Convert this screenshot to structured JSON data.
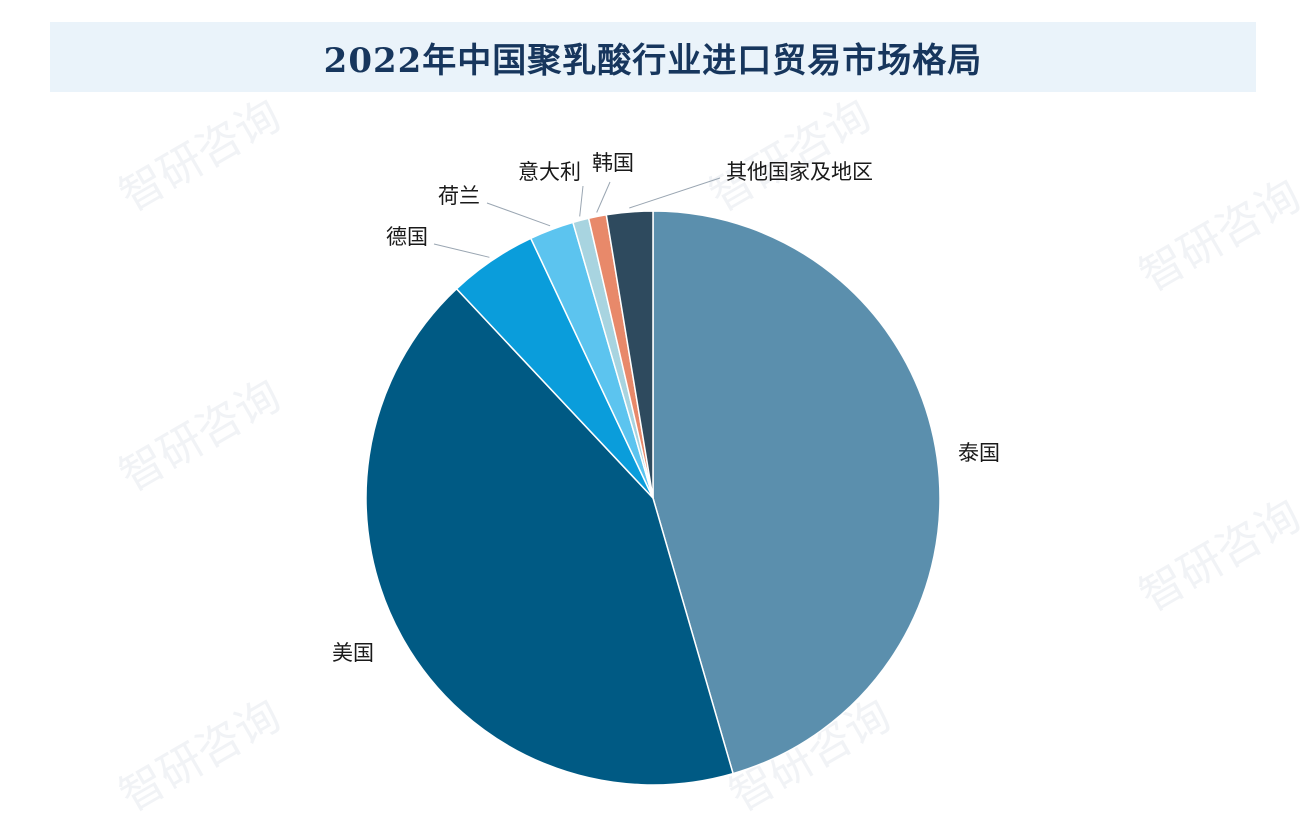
{
  "title": "2022年中国聚乳酸行业进口贸易市场格局",
  "watermark_text": "智研咨询",
  "chart_data": {
    "type": "pie",
    "title": "2022年中国聚乳酸行业进口贸易市场格局",
    "start_angle_deg": 0,
    "direction": "clockwise",
    "slices": [
      {
        "label": "泰国",
        "value": 45.5,
        "color": "#5b8fad"
      },
      {
        "label": "美国",
        "value": 42.5,
        "color": "#005a84"
      },
      {
        "label": "德国",
        "value": 5.0,
        "color": "#0a9ddb"
      },
      {
        "label": "荷兰",
        "value": 2.5,
        "color": "#5cc4ef"
      },
      {
        "label": "意大利",
        "value": 0.9,
        "color": "#a8d4e0"
      },
      {
        "label": "韩国",
        "value": 1.0,
        "color": "#e8896a"
      },
      {
        "label": "其他国家及地区",
        "value": 2.6,
        "color": "#2e4a5e"
      }
    ]
  }
}
